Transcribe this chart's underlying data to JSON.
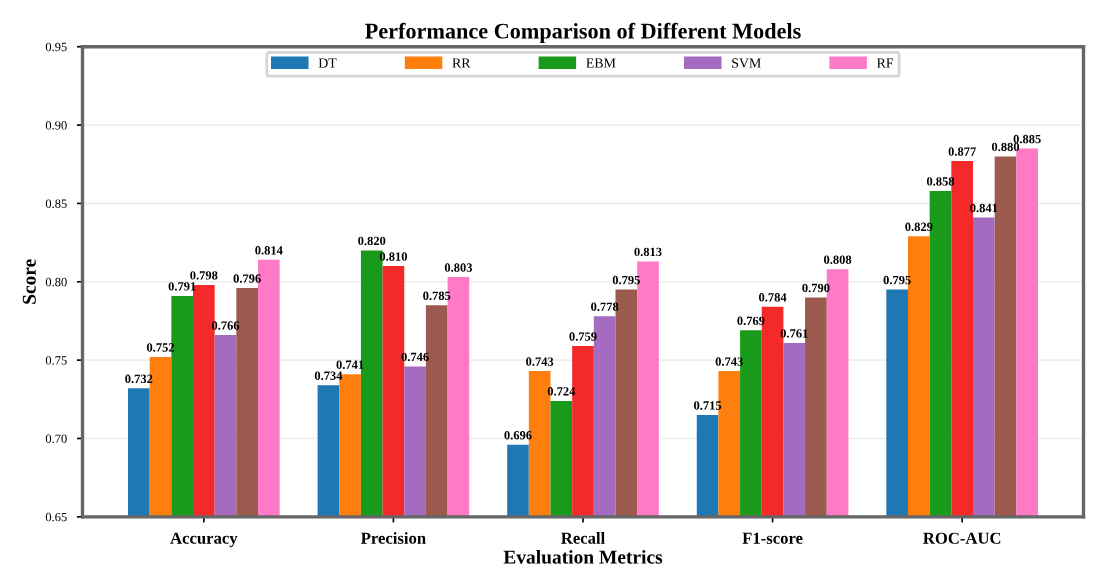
{
  "chart_data": {
    "type": "bar",
    "title": "Performance Comparison of Different Models",
    "xlabel": "Evaluation Metrics",
    "ylabel": "Score",
    "categories": [
      "Accuracy",
      "Precision",
      "Recall",
      "F1-score",
      "ROC-AUC"
    ],
    "series": [
      {
        "name": "DT",
        "color": "#1f77b4",
        "values": [
          0.732,
          0.734,
          0.696,
          0.715,
          0.795
        ],
        "value_labels": [
          "0.732",
          "0.734",
          "0.696",
          "0.715",
          "0.795"
        ]
      },
      {
        "name": "RR",
        "color": "#ff7f0e",
        "values": [
          0.752,
          0.741,
          0.743,
          0.743,
          0.829
        ],
        "value_labels": [
          "0.752",
          "0.741",
          "0.743",
          "0.743",
          "0.829"
        ]
      },
      {
        "name": "EBM",
        "color": "#1a9a1a",
        "values": [
          0.791,
          0.82,
          0.724,
          0.769,
          0.858
        ],
        "value_labels": [
          "0.791",
          "0.820",
          "0.724",
          "0.769",
          "0.858"
        ]
      },
      {
        "color": "#f42a2a",
        "values": [
          0.798,
          0.81,
          0.759,
          0.784,
          0.877
        ],
        "value_labels": [
          "0.798",
          "0.810",
          "0.759",
          "0.784",
          "0.877"
        ]
      },
      {
        "name": "SVM",
        "color": "#a56bc0",
        "values": [
          0.766,
          0.746,
          0.778,
          0.761,
          0.841
        ],
        "value_labels": [
          "0.766",
          "0.746",
          "0.778",
          "0.761",
          "0.841"
        ]
      },
      {
        "color": "#9c5a4e",
        "values": [
          0.796,
          0.785,
          0.795,
          0.79,
          0.88
        ],
        "value_labels": [
          "0.796",
          "0.785",
          "0.795",
          "0.790",
          "0.880"
        ]
      },
      {
        "name": "RF",
        "color": "#ff7ac6",
        "values": [
          0.814,
          0.803,
          0.813,
          0.808,
          0.885
        ],
        "value_labels": [
          "0.814",
          "0.803",
          "0.813",
          "0.808",
          "0.885"
        ]
      }
    ],
    "ylim": [
      0.65,
      0.95
    ],
    "yticks": [
      "0.65",
      "0.70",
      "0.75",
      "0.80",
      "0.85",
      "0.90",
      "0.95"
    ],
    "grid": "y",
    "legend": "top"
  }
}
